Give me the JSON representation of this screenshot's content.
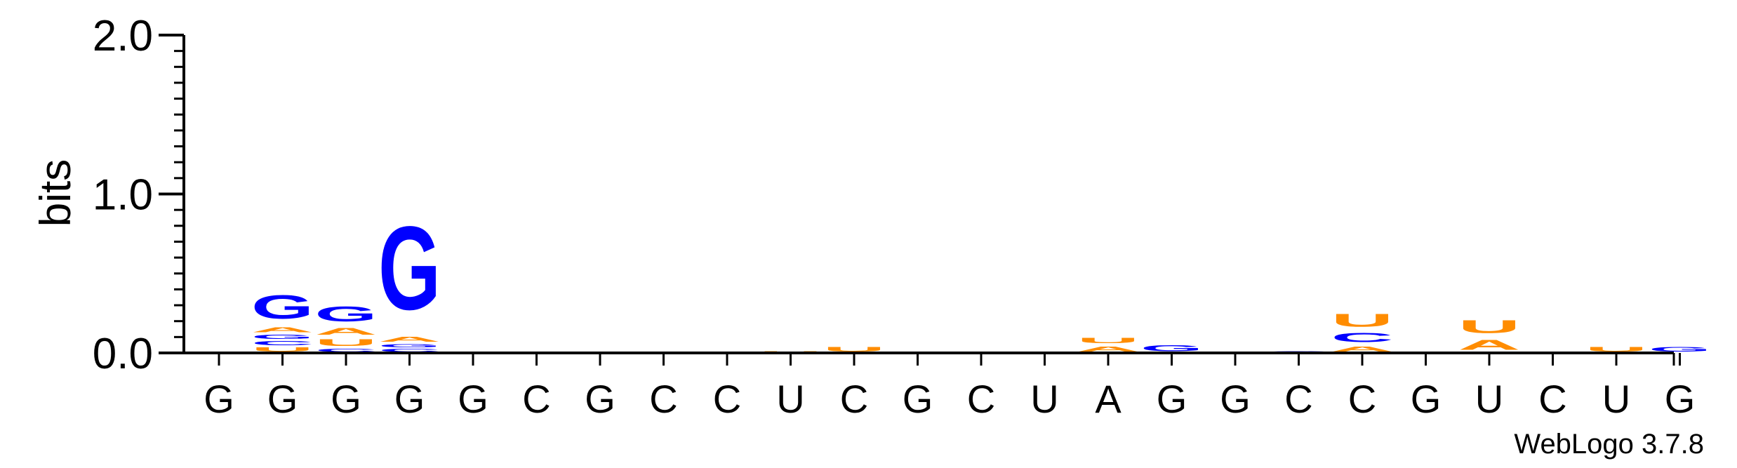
{
  "chart_data": {
    "type": "sequence-logo",
    "ylabel": "bits",
    "ylim": [
      0,
      2.0
    ],
    "yticks": [
      "0.0",
      "1.0",
      "2.0"
    ],
    "credit": "WebLogo 3.7.8",
    "colors": {
      "G": "#0000ff",
      "C": "#0000ff",
      "A": "#ff8c00",
      "U": "#ff8c00"
    },
    "x_labels": [
      "G",
      "G",
      "G",
      "G",
      "G",
      "C",
      "G",
      "C",
      "C",
      "U",
      "C",
      "G",
      "C",
      "U",
      "A",
      "G",
      "G",
      "C",
      "C",
      "G",
      "U",
      "C",
      "U",
      "G"
    ],
    "positions": [
      {
        "stack": []
      },
      {
        "stack": [
          {
            "l": "U",
            "h": 0.04
          },
          {
            "l": "C",
            "h": 0.04
          },
          {
            "l": "G",
            "h": 0.04
          },
          {
            "l": "A",
            "h": 0.05
          },
          {
            "l": "G",
            "h": 0.24
          }
        ]
      },
      {
        "stack": [
          {
            "l": "C",
            "h": 0.03
          },
          {
            "l": "U",
            "h": 0.07
          },
          {
            "l": "A",
            "h": 0.07
          },
          {
            "l": "G",
            "h": 0.15
          }
        ]
      },
      {
        "stack": [
          {
            "l": "C",
            "h": 0.03
          },
          {
            "l": "G",
            "h": 0.03
          },
          {
            "l": "A",
            "h": 0.05
          },
          {
            "l": "G",
            "h": 0.84
          }
        ]
      },
      {
        "stack": []
      },
      {
        "stack": []
      },
      {
        "stack": []
      },
      {
        "stack": []
      },
      {
        "stack": [
          {
            "l": "G",
            "h": 0.005
          }
        ]
      },
      {
        "stack": [
          {
            "l": "U",
            "h": 0.012
          }
        ]
      },
      {
        "stack": [
          {
            "l": "U",
            "h": 0.045
          }
        ]
      },
      {
        "stack": []
      },
      {
        "stack": []
      },
      {
        "stack": []
      },
      {
        "stack": [
          {
            "l": "A",
            "h": 0.05
          },
          {
            "l": "U",
            "h": 0.055
          }
        ]
      },
      {
        "stack": [
          {
            "l": "G",
            "h": 0.06
          }
        ]
      },
      {
        "stack": []
      },
      {
        "stack": [
          {
            "l": "G",
            "h": 0.012
          }
        ]
      },
      {
        "stack": [
          {
            "l": "A",
            "h": 0.05
          },
          {
            "l": "C",
            "h": 0.09
          },
          {
            "l": "U",
            "h": 0.13
          }
        ]
      },
      {
        "stack": []
      },
      {
        "stack": [
          {
            "l": "A",
            "h": 0.1
          },
          {
            "l": "U",
            "h": 0.13
          }
        ]
      },
      {
        "stack": [
          {
            "l": "G",
            "h": 0.01
          }
        ]
      },
      {
        "stack": [
          {
            "l": "U",
            "h": 0.045
          }
        ]
      },
      {
        "stack": [
          {
            "l": "G",
            "h": 0.045
          }
        ]
      }
    ]
  }
}
